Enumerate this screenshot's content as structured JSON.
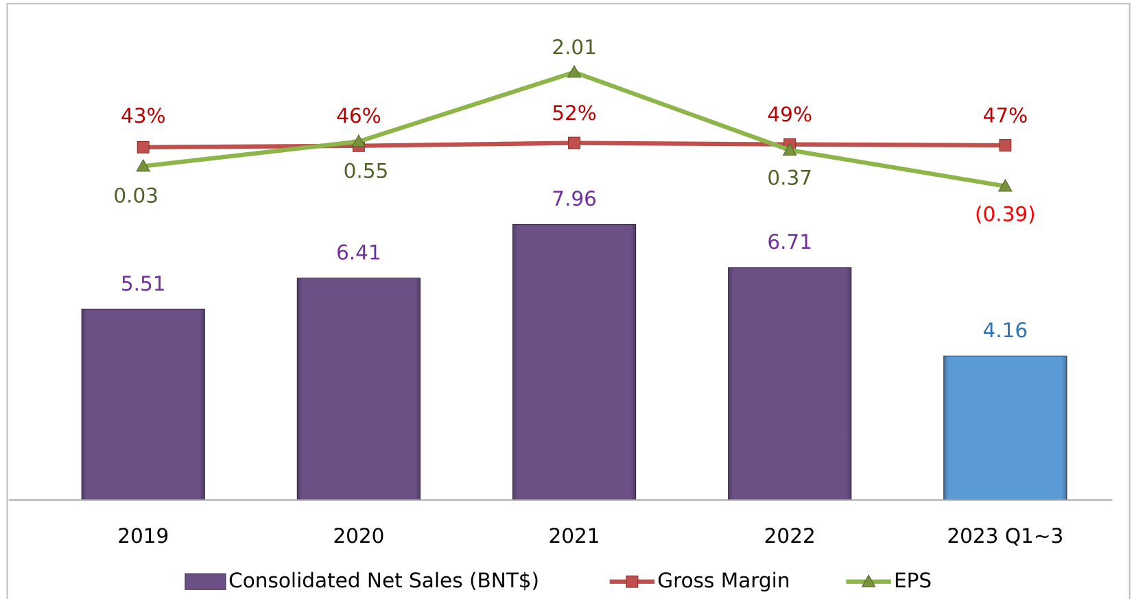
{
  "chart_data": {
    "type": "combo",
    "categories": [
      "2019",
      "2020",
      "2021",
      "2022",
      "2023 Q1~3"
    ],
    "series": [
      {
        "name": "Consolidated Net Sales (BNT$)",
        "type": "bar",
        "color": "#6a5085",
        "colors": [
          "#6a5085",
          "#6a5085",
          "#6a5085",
          "#6a5085",
          "#5b9bd5"
        ],
        "label_colors": [
          "#7030a0",
          "#7030a0",
          "#7030a0",
          "#7030a0",
          "#2e75b6"
        ],
        "values": [
          5.51,
          6.41,
          7.96,
          6.71,
          4.16
        ]
      },
      {
        "name": "Gross Margin",
        "type": "line",
        "axis": "y2",
        "color": "#c0504d",
        "label_colors": [
          "#c00000",
          "#c00000",
          "#c00000",
          "#c00000",
          "#c00000"
        ],
        "values": [
          43,
          46,
          52,
          49,
          47
        ],
        "value_labels": [
          "43%",
          "46%",
          "52%",
          "49%",
          "47%"
        ]
      },
      {
        "name": "EPS",
        "type": "line",
        "axis": "y3",
        "color": "#8db54a",
        "label_colors": [
          "#4f6228",
          "#4f6228",
          "#4f6228",
          "#4f6228",
          "#ff0000"
        ],
        "values": [
          0.03,
          0.55,
          2.01,
          0.37,
          -0.39
        ],
        "value_labels": [
          "0.03",
          "0.55",
          "2.01",
          "0.37",
          "(0.39)"
        ]
      }
    ],
    "ylim": [
      0,
      14.4
    ],
    "y2lim": [
      -700,
      350
    ],
    "y3lim": [
      -7,
      3.5
    ],
    "legend": "bottom"
  }
}
